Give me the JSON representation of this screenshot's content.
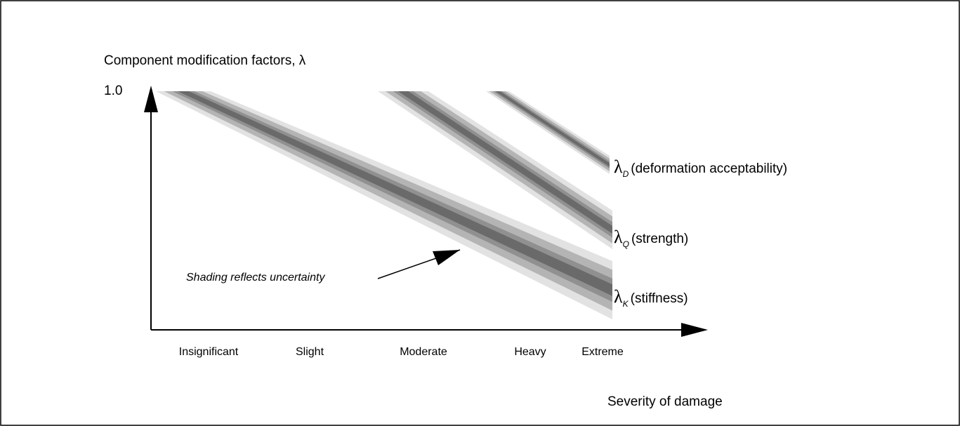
{
  "y_axis": {
    "label": "Component  modification factors, λ",
    "top_label": "1.0"
  },
  "x_axis": {
    "label": "Severity of damage",
    "categories": [
      "Insignificant",
      "Slight",
      "Moderate",
      "Heavy",
      "Extreme"
    ]
  },
  "annotation": "Shading reflects uncertainty",
  "bands": [
    {
      "symbol": "λ",
      "subscript": "D",
      "label": "(deformation acceptability)"
    },
    {
      "symbol": "λ",
      "subscript": "Q",
      "label": "(strength)"
    },
    {
      "symbol": "λ",
      "subscript": "K",
      "label": "(stiffness)"
    }
  ]
}
